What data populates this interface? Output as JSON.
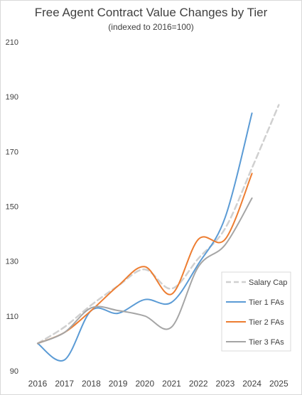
{
  "chart_data": {
    "type": "line",
    "title": "Free Agent Contract Value Changes by Tier",
    "subtitle": "(indexed to 2016=100)",
    "xlabel": "",
    "ylabel": "",
    "x": [
      2016,
      2017,
      2018,
      2019,
      2020,
      2021,
      2022,
      2023,
      2024,
      2025
    ],
    "ylim": [
      90,
      210
    ],
    "yticks": [
      90,
      110,
      130,
      150,
      170,
      190,
      210
    ],
    "grid": false,
    "legend_position": "bottom-right",
    "series": [
      {
        "name": "Salary Cap",
        "color": "#d0d0d0",
        "dashed": true,
        "x": [
          2016,
          2017,
          2018,
          2019,
          2020,
          2021,
          2022,
          2023,
          2024,
          2025
        ],
        "values": [
          100,
          106,
          114,
          121,
          127,
          120,
          131,
          142,
          164,
          187
        ]
      },
      {
        "name": "Tier 1 FAs",
        "color": "#5b9bd5",
        "dashed": false,
        "x": [
          2016,
          2017,
          2018,
          2019,
          2020,
          2021,
          2022,
          2023,
          2024
        ],
        "values": [
          100,
          94,
          112,
          111,
          116,
          115,
          129,
          146,
          184
        ]
      },
      {
        "name": "Tier 2 FAs",
        "color": "#ed7d31",
        "dashed": false,
        "x": [
          2016,
          2017,
          2018,
          2019,
          2020,
          2021,
          2022,
          2023,
          2024
        ],
        "values": [
          100,
          104,
          112,
          121,
          128,
          118,
          138,
          138,
          162
        ]
      },
      {
        "name": "Tier 3 FAs",
        "color": "#a5a5a5",
        "dashed": false,
        "x": [
          2016,
          2017,
          2018,
          2019,
          2020,
          2021,
          2022,
          2023,
          2024
        ],
        "values": [
          100,
          104,
          113,
          112,
          110,
          106,
          128,
          136,
          153
        ]
      }
    ]
  }
}
